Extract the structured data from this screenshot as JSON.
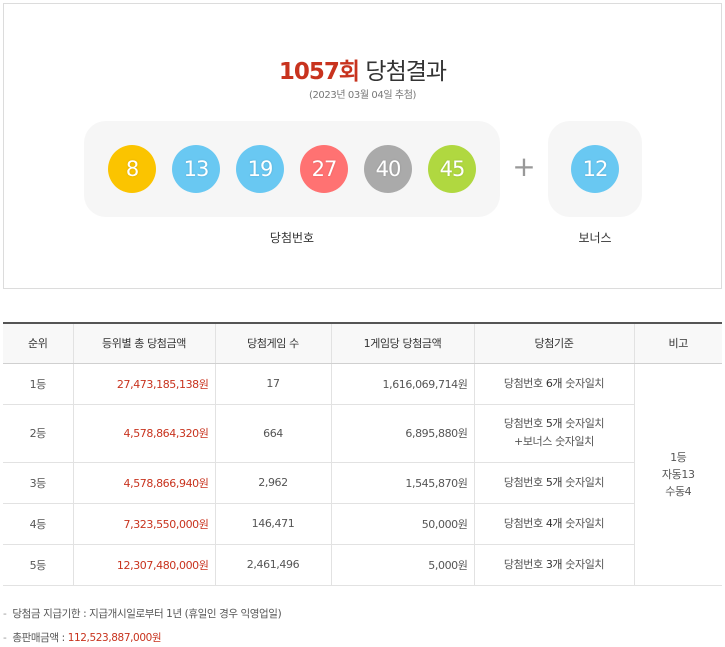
{
  "header": {
    "round_label": "1057회",
    "title_suffix": "당첨결과",
    "date_text": "(2023년 03월 04일 추첨)"
  },
  "winning": {
    "label": "당첨번호",
    "numbers": [
      {
        "value": "8",
        "color": "#fbc400"
      },
      {
        "value": "13",
        "color": "#69c8f2"
      },
      {
        "value": "19",
        "color": "#69c8f2"
      },
      {
        "value": "27",
        "color": "#ff7272"
      },
      {
        "value": "40",
        "color": "#aaaaaa"
      },
      {
        "value": "45",
        "color": "#b0d840"
      }
    ],
    "plus_sign": "+"
  },
  "bonus": {
    "label": "보너스",
    "number": {
      "value": "12",
      "color": "#69c8f2"
    }
  },
  "table": {
    "headers": [
      "순위",
      "등위별 총 당첨금액",
      "당첨게임 수",
      "1게임당 당첨금액",
      "당첨기준",
      "비고"
    ],
    "rows": [
      {
        "rank": "1등",
        "total": "27,473,185,138원",
        "winners": "17",
        "per_game": "1,616,069,714원",
        "crit_pre": "당첨번호 ",
        "crit_cnt": "6개",
        "crit_post": " 숫자일치",
        "crit_line2": ""
      },
      {
        "rank": "2등",
        "total": "4,578,864,320원",
        "winners": "664",
        "per_game": "6,895,880원",
        "crit_pre": "당첨번호 ",
        "crit_cnt": "5개",
        "crit_post": " 숫자일치",
        "crit_line2": "+보너스 숫자일치"
      },
      {
        "rank": "3등",
        "total": "4,578,866,940원",
        "winners": "2,962",
        "per_game": "1,545,870원",
        "crit_pre": "당첨번호 ",
        "crit_cnt": "5개",
        "crit_post": " 숫자일치",
        "crit_line2": ""
      },
      {
        "rank": "4등",
        "total": "7,323,550,000원",
        "winners": "146,471",
        "per_game": "50,000원",
        "crit_pre": "당첨번호 ",
        "crit_cnt": "4개",
        "crit_post": " 숫자일치",
        "crit_line2": ""
      },
      {
        "rank": "5등",
        "total": "12,307,480,000원",
        "winners": "2,461,496",
        "per_game": "5,000원",
        "crit_pre": "당첨번호 ",
        "crit_cnt": "3개",
        "crit_post": " 숫자일치",
        "crit_line2": ""
      }
    ],
    "note": {
      "line1": "1등",
      "line2": "자동13",
      "line3": "수동4"
    }
  },
  "footer": {
    "deadline_dash": "-",
    "deadline_text": "당첨금 지급기한 : 지급개시일로부터 1년 (휴일인 경우 익영업일)",
    "sales_dash": "-",
    "sales_label": "총판매금액 : ",
    "sales_amount": "112,523,887,000원"
  }
}
